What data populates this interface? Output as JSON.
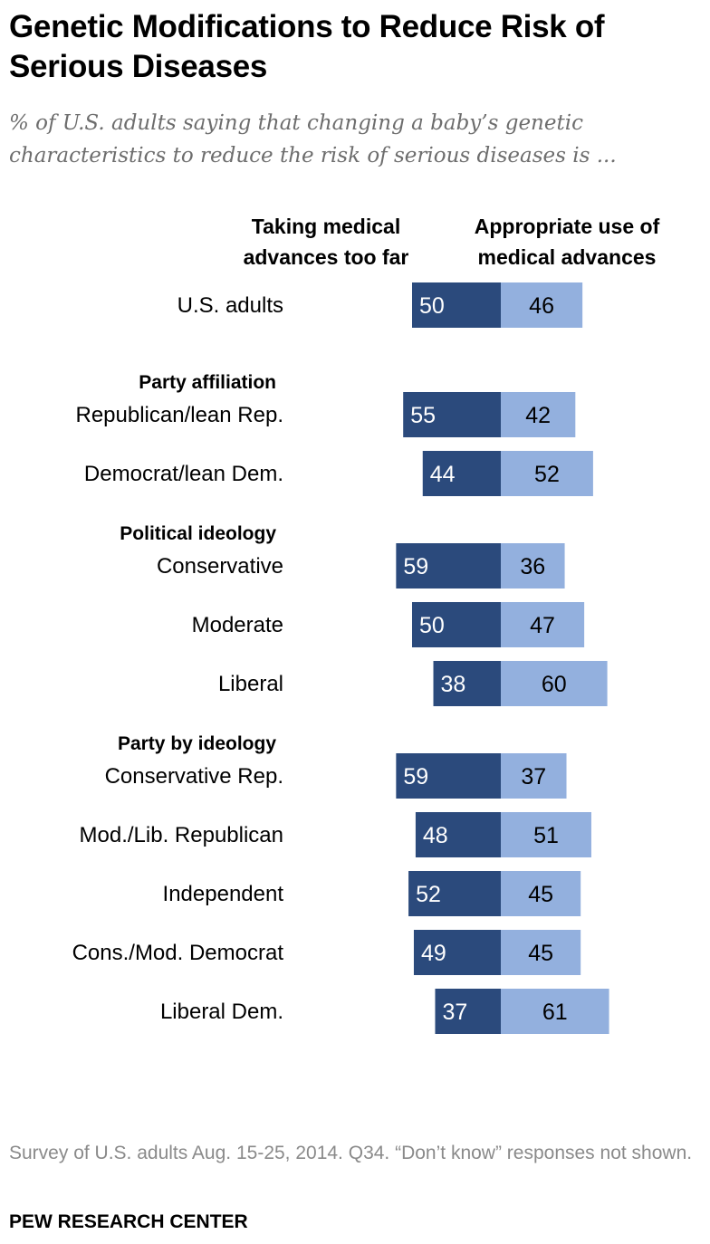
{
  "chart_data": {
    "type": "bar",
    "orientation": "horizontal-diverging",
    "title": "Genetic Modifications to Reduce Risk of Serious Diseases",
    "subtitle": "% of U.S. adults saying that changing a baby’s genetic characteristics to reduce the risk of serious diseases is ...",
    "series": [
      {
        "name": "Taking medical advances too far",
        "color": "#2b4a7c"
      },
      {
        "name": "Appropriate use of medical advances",
        "color": "#93b0de"
      }
    ],
    "rows": [
      {
        "kind": "data",
        "label": "U.S. adults",
        "values": [
          50,
          46
        ]
      },
      {
        "kind": "group",
        "label": "Party affiliation"
      },
      {
        "kind": "data",
        "label": "Republican/lean Rep.",
        "values": [
          55,
          42
        ]
      },
      {
        "kind": "data",
        "label": "Democrat/lean Dem.",
        "values": [
          44,
          52
        ]
      },
      {
        "kind": "group",
        "label": "Political ideology"
      },
      {
        "kind": "data",
        "label": "Conservative",
        "values": [
          59,
          36
        ]
      },
      {
        "kind": "data",
        "label": "Moderate",
        "values": [
          50,
          47
        ]
      },
      {
        "kind": "data",
        "label": "Liberal",
        "values": [
          38,
          60
        ]
      },
      {
        "kind": "group",
        "label": "Party by ideology"
      },
      {
        "kind": "data",
        "label": "Conservative Rep.",
        "values": [
          59,
          37
        ]
      },
      {
        "kind": "data",
        "label": "Mod./Lib. Republican",
        "values": [
          48,
          51
        ]
      },
      {
        "kind": "data",
        "label": "Independent",
        "values": [
          52,
          45
        ]
      },
      {
        "kind": "data",
        "label": "Cons./Mod. Democrat",
        "values": [
          49,
          45
        ]
      },
      {
        "kind": "data",
        "label": "Liberal Dem.",
        "values": [
          37,
          61
        ]
      }
    ]
  },
  "note": "Survey of U.S. adults Aug. 15-25, 2014. Q34. “Don’t know” responses not shown.",
  "source": "PEW RESEARCH CENTER"
}
